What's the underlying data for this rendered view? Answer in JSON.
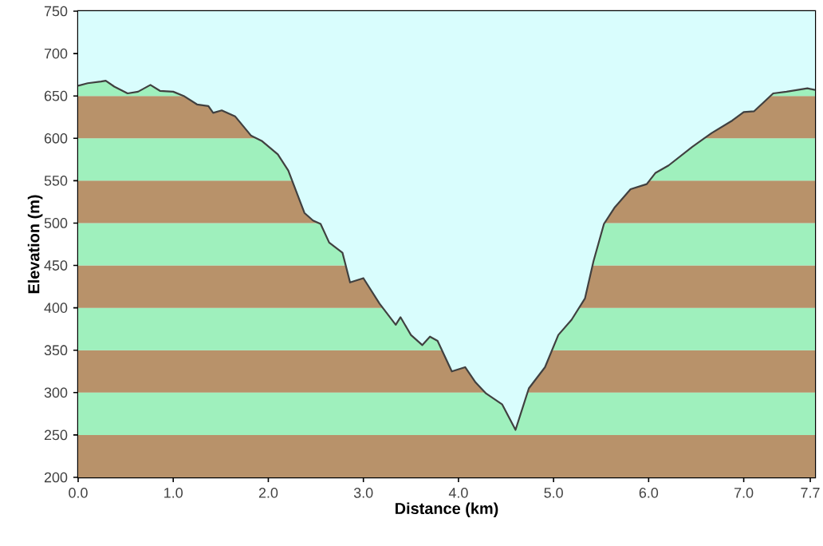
{
  "chart_data": {
    "type": "line",
    "xlabel": "Distance   (km)",
    "ylabel": "Elevation (m)",
    "xlim": [
      0,
      7.75
    ],
    "ylim": [
      200,
      750
    ],
    "xticks": [
      {
        "value": 0,
        "label": "0.0"
      },
      {
        "value": 1,
        "label": "1.0"
      },
      {
        "value": 2,
        "label": "2.0"
      },
      {
        "value": 3,
        "label": "3.0"
      },
      {
        "value": 4,
        "label": "4.0"
      },
      {
        "value": 5,
        "label": "5.0"
      },
      {
        "value": 6,
        "label": "6.0"
      },
      {
        "value": 7,
        "label": "7.0"
      },
      {
        "value": 7.7,
        "label": "7.7"
      }
    ],
    "yticks": [
      200,
      250,
      300,
      350,
      400,
      450,
      500,
      550,
      600,
      650,
      700,
      750
    ],
    "bands": [
      {
        "axis": "y",
        "from": 200,
        "to": 250,
        "color": "#b8926a"
      },
      {
        "axis": "y",
        "from": 250,
        "to": 300,
        "color": "#9ff0bd"
      },
      {
        "axis": "y",
        "from": 300,
        "to": 350,
        "color": "#b8926a"
      },
      {
        "axis": "y",
        "from": 350,
        "to": 400,
        "color": "#9ff0bd"
      },
      {
        "axis": "y",
        "from": 400,
        "to": 450,
        "color": "#b8926a"
      },
      {
        "axis": "y",
        "from": 450,
        "to": 500,
        "color": "#9ff0bd"
      },
      {
        "axis": "y",
        "from": 500,
        "to": 550,
        "color": "#b8926a"
      },
      {
        "axis": "y",
        "from": 550,
        "to": 600,
        "color": "#9ff0bd"
      },
      {
        "axis": "y",
        "from": 600,
        "to": 650,
        "color": "#b8926a"
      },
      {
        "axis": "y",
        "from": 650,
        "to": 700,
        "color": "#9ff0bd"
      }
    ],
    "series": [
      {
        "color": "#404040",
        "x": [
          0,
          0.1,
          0.24,
          0.29,
          0.38,
          0.52,
          0.63,
          0.76,
          0.86,
          1.0,
          1.11,
          1.25,
          1.37,
          1.42,
          1.51,
          1.65,
          1.82,
          1.93,
          2.1,
          2.21,
          2.38,
          2.47,
          2.55,
          2.64,
          2.78,
          2.86,
          3.0,
          3.17,
          3.34,
          3.39,
          3.5,
          3.62,
          3.7,
          3.78,
          3.93,
          4.07,
          4.18,
          4.29,
          4.46,
          4.6,
          4.74,
          4.91,
          5.05,
          5.19,
          5.33,
          5.42,
          5.53,
          5.64,
          5.81,
          5.98,
          6.07,
          6.21,
          6.46,
          6.66,
          6.88,
          7.0,
          7.11,
          7.31,
          7.45,
          7.67,
          7.75
        ],
        "values": [
          662,
          665,
          667,
          668,
          661,
          653,
          655,
          663,
          656,
          655,
          650,
          640,
          638,
          630,
          633,
          626,
          603,
          597,
          581,
          562,
          512,
          503,
          499,
          477,
          465,
          430,
          435,
          405,
          380,
          389,
          368,
          356,
          366,
          361,
          325,
          330,
          312,
          299,
          286,
          256,
          305,
          330,
          368,
          386,
          411,
          455,
          499,
          518,
          540,
          546,
          559,
          568,
          590,
          606,
          621,
          631,
          632,
          653,
          655,
          659,
          657
        ]
      }
    ]
  }
}
